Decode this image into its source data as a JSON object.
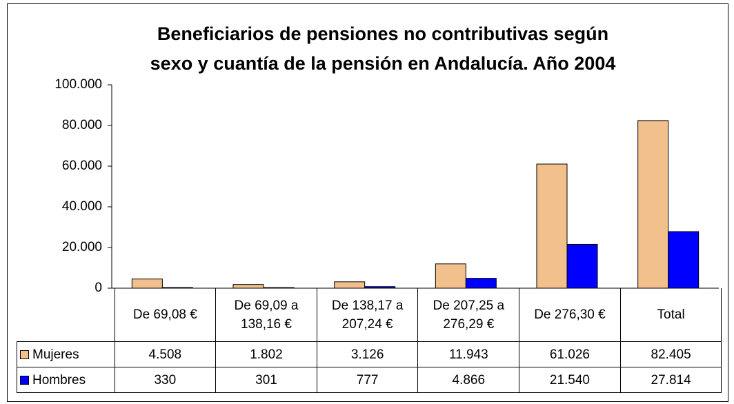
{
  "chart_data": {
    "type": "bar",
    "title": "Beneficiarios de pensiones no contributivas según sexo y cuantía de la pensión en Andalucía. Año 2004",
    "categories": [
      "De 69,08 €",
      "De 69,09 a 138,16 €",
      "De 138,17 a 207,24 €",
      "De 207,25 a 276,29 €",
      "De 276,30 €",
      "Total"
    ],
    "series": [
      {
        "name": "Mujeres",
        "color": "#f2c08c",
        "values": [
          4508,
          1802,
          3126,
          11943,
          61026,
          82405
        ],
        "value_labels": [
          "4.508",
          "1.802",
          "3.126",
          "11.943",
          "61.026",
          "82.405"
        ]
      },
      {
        "name": "Hombres",
        "color": "#0000ff",
        "values": [
          330,
          301,
          777,
          4866,
          21540,
          27814
        ],
        "value_labels": [
          "330",
          "301",
          "777",
          "4.866",
          "21.540",
          "27.814"
        ]
      }
    ],
    "ylim": [
      0,
      100000
    ],
    "yticks": [
      0,
      {
        "value": 20000,
        "label": "20.000"
      },
      {
        "value": 40000,
        "label": "40.000"
      },
      {
        "value": 60000,
        "label": "60.000"
      },
      {
        "value": 80000,
        "label": "80.000"
      },
      {
        "value": 100000,
        "label": "100.000"
      }
    ],
    "grid": false
  }
}
